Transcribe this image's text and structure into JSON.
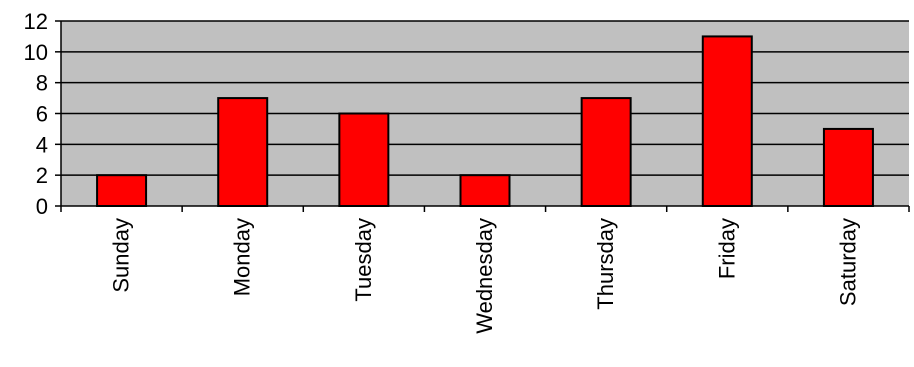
{
  "chart_data": {
    "type": "bar",
    "categories": [
      "Sunday",
      "Monday",
      "Tuesday",
      "Wednesday",
      "Thursday",
      "Friday",
      "Saturday"
    ],
    "values": [
      2,
      7,
      6,
      2,
      7,
      11,
      5
    ],
    "title": "",
    "xlabel": "",
    "ylabel": "",
    "ylim": [
      0,
      12
    ],
    "yticks": [
      0,
      2,
      4,
      6,
      8,
      10,
      12
    ],
    "grid": true,
    "legend": "none",
    "colors": {
      "bar": "#ff0000",
      "plot_background": "#c0c0c0",
      "gridline": "#000000",
      "bar_outline": "#000000"
    }
  }
}
